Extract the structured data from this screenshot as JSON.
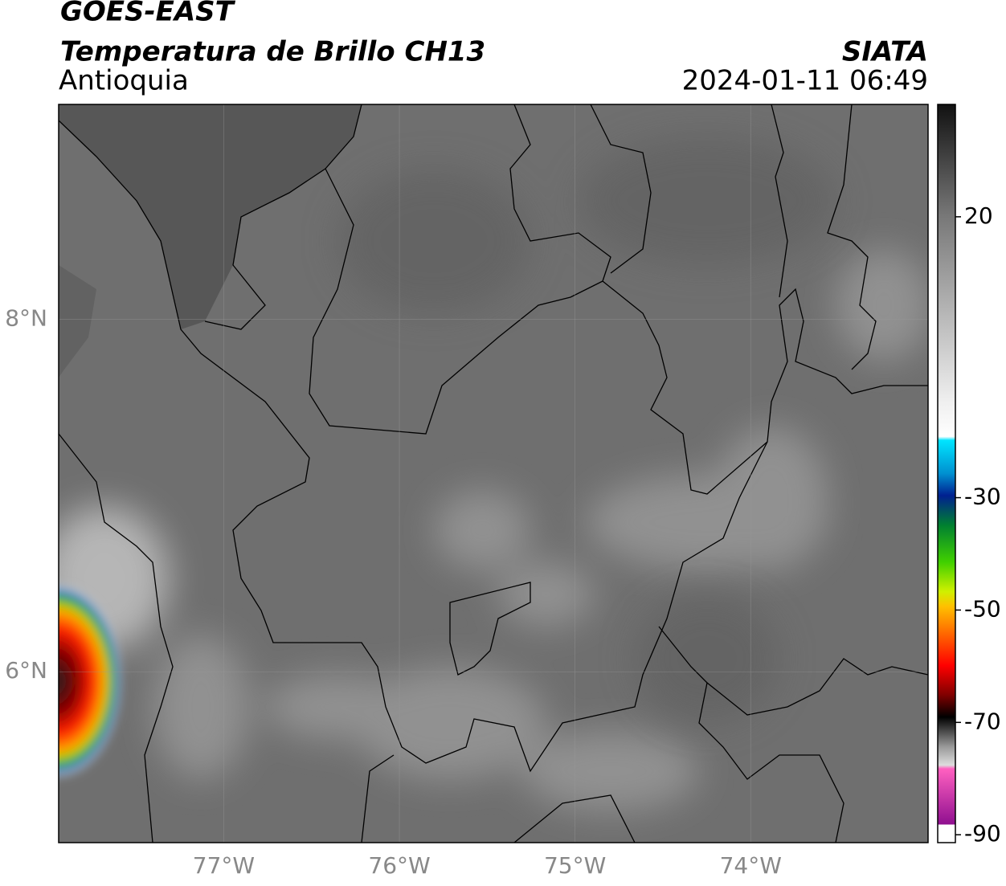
{
  "header": {
    "title": "GOES-EAST",
    "subtitle": "Temperatura de Brillo CH13",
    "source": "SIATA",
    "region": "Antioquia",
    "datetime": "2024-01-11 06:49"
  },
  "map": {
    "lonlim": [
      -77.94,
      -72.99
    ],
    "latlim": [
      5.03,
      9.22
    ],
    "lonticks": [
      {
        "value": -77,
        "label": "77°W"
      },
      {
        "value": -76,
        "label": "76°W"
      },
      {
        "value": -75,
        "label": "75°W"
      },
      {
        "value": -74,
        "label": "74°W"
      }
    ],
    "latticks": [
      {
        "value": 6,
        "label": "6°N"
      },
      {
        "value": 8,
        "label": "8°N"
      }
    ],
    "grid": true
  },
  "colorbar": {
    "lim": [
      -91.4,
      40
    ],
    "ticks": [
      -90,
      -70,
      -50,
      -30,
      20
    ]
  }
}
